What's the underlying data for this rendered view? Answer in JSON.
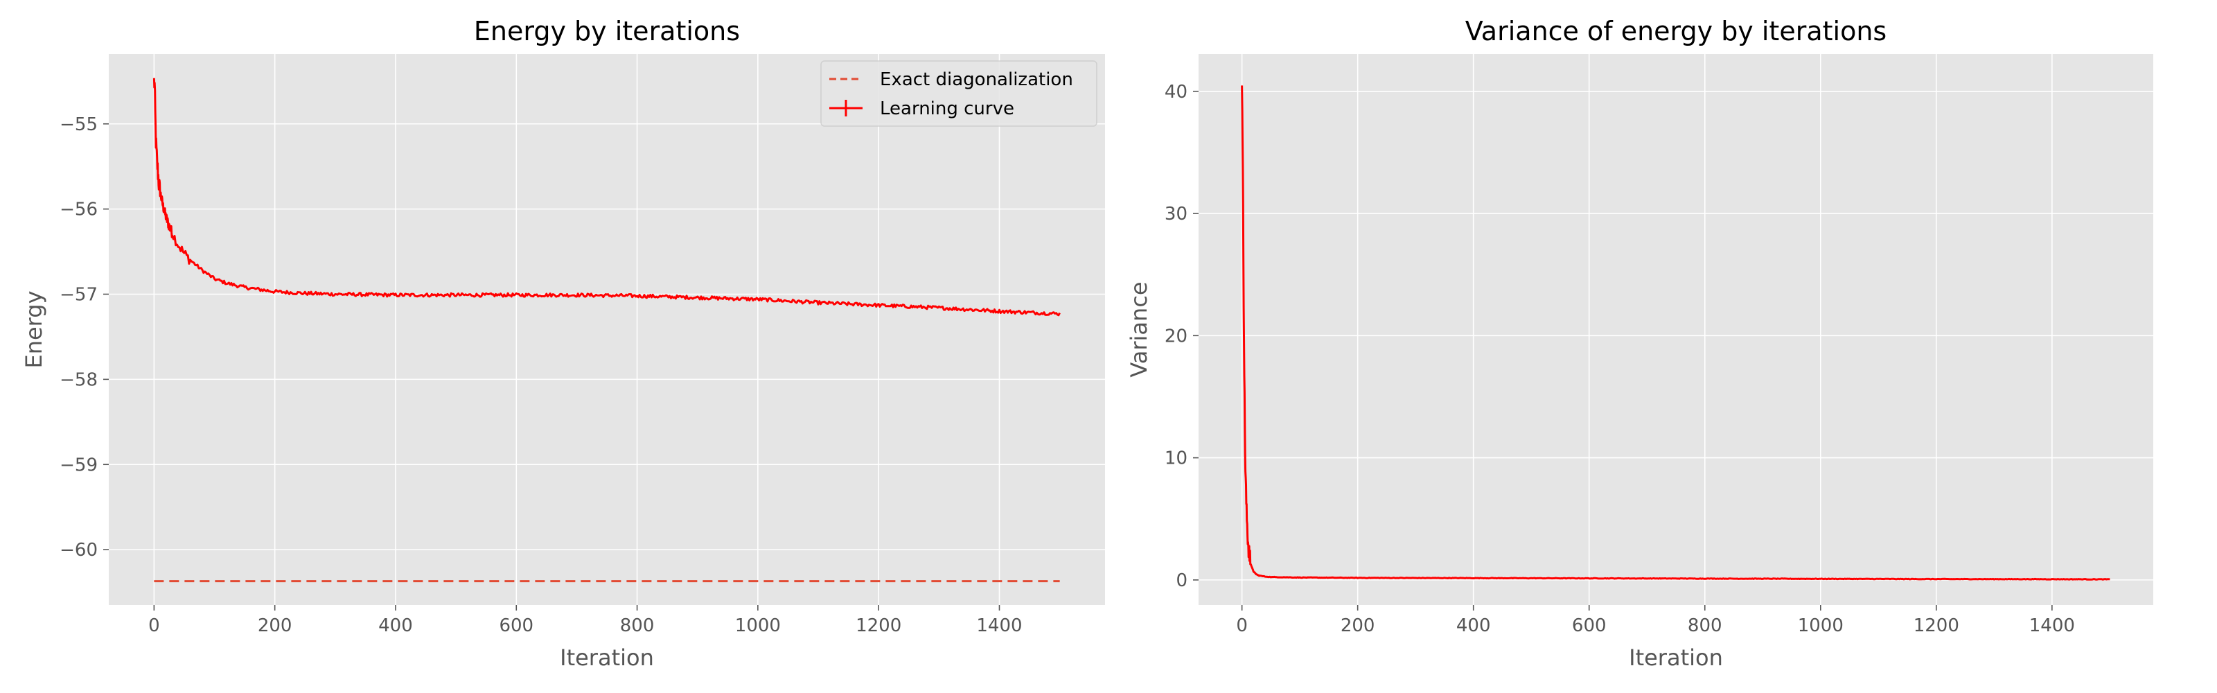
{
  "colors": {
    "background": "#ffffff",
    "plot_bg": "#e5e5e5",
    "grid": "#ffffff",
    "tick_text": "#555555",
    "curve": "#ff0000",
    "exact_line": "#e24a33",
    "legend_bg": "#e5e5e5",
    "legend_border": "#cccccc"
  },
  "chart_data": [
    {
      "type": "line",
      "title": "Energy by iterations",
      "xlabel": "Iteration",
      "ylabel": "Energy",
      "xlim": [
        -75,
        1575
      ],
      "ylim": [
        -60.65,
        -54.18
      ],
      "xticks": [
        0,
        200,
        400,
        600,
        800,
        1000,
        1200,
        1400
      ],
      "xticklabels": [
        "0",
        "200",
        "400",
        "600",
        "800",
        "1000",
        "1200",
        "1400"
      ],
      "yticks": [
        -60,
        -59,
        -58,
        -57,
        -56,
        -55
      ],
      "yticklabels": [
        "−60",
        "−59",
        "−58",
        "−57",
        "−56",
        "−55"
      ],
      "grid": true,
      "legend_position": "top-right",
      "series": [
        {
          "name": "Exact diagonalization",
          "style": "dashed",
          "x": [
            0,
            1500
          ],
          "y": [
            -60.37,
            -60.37
          ]
        },
        {
          "name": "Learning curve",
          "style": "solid",
          "errorbars": true,
          "x": [
            0,
            1,
            2,
            3,
            5,
            8,
            10,
            15,
            20,
            25,
            30,
            40,
            50,
            60,
            80,
            100,
            120,
            150,
            200,
            250,
            300,
            400,
            500,
            600,
            700,
            800,
            900,
            1000,
            1100,
            1200,
            1300,
            1400,
            1500
          ],
          "y": [
            -54.5,
            -54.55,
            -54.9,
            -55.2,
            -55.45,
            -55.7,
            -55.8,
            -55.97,
            -56.1,
            -56.2,
            -56.28,
            -56.42,
            -56.52,
            -56.6,
            -56.72,
            -56.82,
            -56.87,
            -56.92,
            -56.97,
            -56.99,
            -57.0,
            -57.01,
            -57.01,
            -57.01,
            -57.01,
            -57.02,
            -57.04,
            -57.06,
            -57.1,
            -57.13,
            -57.16,
            -57.2,
            -57.23
          ]
        }
      ]
    },
    {
      "type": "line",
      "title": "Variance of energy by iterations",
      "xlabel": "Iteration",
      "ylabel": "Variance",
      "xlim": [
        -75,
        1575
      ],
      "ylim": [
        -2.05,
        43.05
      ],
      "xticks": [
        0,
        200,
        400,
        600,
        800,
        1000,
        1200,
        1400
      ],
      "xticklabels": [
        "0",
        "200",
        "400",
        "600",
        "800",
        "1000",
        "1200",
        "1400"
      ],
      "yticks": [
        0,
        10,
        20,
        30,
        40
      ],
      "yticklabels": [
        "0",
        "10",
        "20",
        "30",
        "40"
      ],
      "grid": true,
      "series": [
        {
          "style": "solid",
          "x": [
            0,
            1,
            2,
            3,
            4,
            5,
            6,
            8,
            10,
            12,
            15,
            20,
            25,
            30,
            40,
            50,
            100,
            200,
            400,
            600,
            800,
            1000,
            1200,
            1400,
            1500
          ],
          "y": [
            41.0,
            36.5,
            30.0,
            23.0,
            17.0,
            12.5,
            9.0,
            5.5,
            3.5,
            2.3,
            1.3,
            0.7,
            0.45,
            0.35,
            0.28,
            0.24,
            0.2,
            0.17,
            0.15,
            0.13,
            0.11,
            0.09,
            0.07,
            0.06,
            0.05
          ]
        }
      ]
    }
  ]
}
